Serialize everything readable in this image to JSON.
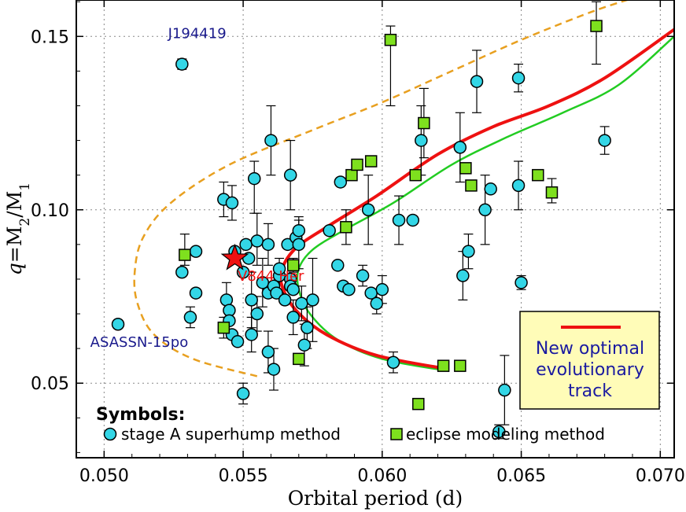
{
  "chart_data": {
    "type": "scatter",
    "xlabel": "Orbital period (d)",
    "ylabel_parts": [
      "q",
      "=M",
      "2",
      "/M",
      "1"
    ],
    "xlim": [
      0.049,
      0.0705
    ],
    "ylim": [
      0.0285,
      0.1605
    ],
    "xticks": [
      0.05,
      0.055,
      0.06,
      0.065,
      0.07
    ],
    "xtick_labels": [
      "0.050",
      "0.055",
      "0.060",
      "0.065",
      "0.070"
    ],
    "yticks": [
      0.05,
      0.1,
      0.15
    ],
    "ytick_labels": [
      "0.05",
      "0.10",
      "0.15"
    ],
    "grid": true,
    "series": [
      {
        "name": "stage A superhump method",
        "marker": "circle",
        "color": "#33d6e6",
        "points": [
          {
            "x": 0.0505,
            "y": 0.067
          },
          {
            "x": 0.0528,
            "y": 0.142,
            "ylo": 0.1405,
            "yhi": 0.1435
          },
          {
            "x": 0.0528,
            "y": 0.082
          },
          {
            "x": 0.0531,
            "y": 0.069,
            "ylo": 0.066,
            "yhi": 0.072
          },
          {
            "x": 0.0533,
            "y": 0.076
          },
          {
            "x": 0.0533,
            "y": 0.088
          },
          {
            "x": 0.0543,
            "y": 0.103,
            "ylo": 0.098,
            "yhi": 0.108
          },
          {
            "x": 0.0544,
            "y": 0.074,
            "ylo": 0.069,
            "yhi": 0.079
          },
          {
            "x": 0.0545,
            "y": 0.071
          },
          {
            "x": 0.0545,
            "y": 0.068
          },
          {
            "x": 0.0546,
            "y": 0.064
          },
          {
            "x": 0.0546,
            "y": 0.102,
            "ylo": 0.097,
            "yhi": 0.107
          },
          {
            "x": 0.0547,
            "y": 0.088
          },
          {
            "x": 0.0548,
            "y": 0.062
          },
          {
            "x": 0.055,
            "y": 0.047,
            "ylo": 0.044,
            "yhi": 0.05
          },
          {
            "x": 0.055,
            "y": 0.082
          },
          {
            "x": 0.0551,
            "y": 0.09
          },
          {
            "x": 0.0552,
            "y": 0.086
          },
          {
            "x": 0.0553,
            "y": 0.074,
            "ylo": 0.066,
            "yhi": 0.082
          },
          {
            "x": 0.0553,
            "y": 0.064,
            "ylo": 0.059,
            "yhi": 0.069
          },
          {
            "x": 0.0554,
            "y": 0.109,
            "ylo": 0.099,
            "yhi": 0.114
          },
          {
            "x": 0.0555,
            "y": 0.07,
            "ylo": 0.065,
            "yhi": 0.075
          },
          {
            "x": 0.0555,
            "y": 0.091,
            "ylo": 0.084,
            "yhi": 0.099
          },
          {
            "x": 0.0557,
            "y": 0.079,
            "ylo": 0.072,
            "yhi": 0.086
          },
          {
            "x": 0.0559,
            "y": 0.09,
            "ylo": 0.084,
            "yhi": 0.096
          },
          {
            "x": 0.0559,
            "y": 0.076
          },
          {
            "x": 0.0559,
            "y": 0.059,
            "ylo": 0.053,
            "yhi": 0.065
          },
          {
            "x": 0.056,
            "y": 0.12,
            "ylo": 0.11,
            "yhi": 0.13
          },
          {
            "x": 0.0561,
            "y": 0.054,
            "ylo": 0.048,
            "yhi": 0.06
          },
          {
            "x": 0.0561,
            "y": 0.078
          },
          {
            "x": 0.0562,
            "y": 0.076
          },
          {
            "x": 0.0563,
            "y": 0.081,
            "ylo": 0.076,
            "yhi": 0.086
          },
          {
            "x": 0.0563,
            "y": 0.083
          },
          {
            "x": 0.0565,
            "y": 0.074
          },
          {
            "x": 0.0566,
            "y": 0.09
          },
          {
            "x": 0.0567,
            "y": 0.08
          },
          {
            "x": 0.0567,
            "y": 0.078
          },
          {
            "x": 0.0567,
            "y": 0.11,
            "ylo": 0.1,
            "yhi": 0.12
          },
          {
            "x": 0.0568,
            "y": 0.069,
            "ylo": 0.064,
            "yhi": 0.074
          },
          {
            "x": 0.0568,
            "y": 0.077
          },
          {
            "x": 0.0569,
            "y": 0.092
          },
          {
            "x": 0.057,
            "y": 0.09,
            "ylo": 0.083,
            "yhi": 0.097
          },
          {
            "x": 0.057,
            "y": 0.094,
            "ylo": 0.09,
            "yhi": 0.098
          },
          {
            "x": 0.0571,
            "y": 0.073,
            "ylo": 0.068,
            "yhi": 0.078
          },
          {
            "x": 0.0572,
            "y": 0.061,
            "ylo": 0.055,
            "yhi": 0.067
          },
          {
            "x": 0.0573,
            "y": 0.066,
            "ylo": 0.06,
            "yhi": 0.072
          },
          {
            "x": 0.0575,
            "y": 0.074,
            "ylo": 0.062,
            "yhi": 0.086
          },
          {
            "x": 0.0581,
            "y": 0.094
          },
          {
            "x": 0.0584,
            "y": 0.084
          },
          {
            "x": 0.0585,
            "y": 0.108
          },
          {
            "x": 0.0586,
            "y": 0.078
          },
          {
            "x": 0.0588,
            "y": 0.077
          },
          {
            "x": 0.0593,
            "y": 0.081,
            "ylo": 0.078,
            "yhi": 0.084
          },
          {
            "x": 0.0595,
            "y": 0.1,
            "ylo": 0.09,
            "yhi": 0.11
          },
          {
            "x": 0.0596,
            "y": 0.076
          },
          {
            "x": 0.0598,
            "y": 0.073,
            "ylo": 0.07,
            "yhi": 0.076
          },
          {
            "x": 0.06,
            "y": 0.077,
            "ylo": 0.073,
            "yhi": 0.081
          },
          {
            "x": 0.0604,
            "y": 0.056,
            "ylo": 0.053,
            "yhi": 0.059
          },
          {
            "x": 0.0606,
            "y": 0.097,
            "ylo": 0.09,
            "yhi": 0.104
          },
          {
            "x": 0.0611,
            "y": 0.097
          },
          {
            "x": 0.0614,
            "y": 0.12,
            "ylo": 0.11,
            "yhi": 0.13
          },
          {
            "x": 0.0628,
            "y": 0.118,
            "ylo": 0.108,
            "yhi": 0.128
          },
          {
            "x": 0.0629,
            "y": 0.081,
            "ylo": 0.074,
            "yhi": 0.088
          },
          {
            "x": 0.0631,
            "y": 0.088,
            "ylo": 0.083,
            "yhi": 0.093
          },
          {
            "x": 0.0634,
            "y": 0.137,
            "ylo": 0.128,
            "yhi": 0.146
          },
          {
            "x": 0.0637,
            "y": 0.1,
            "ylo": 0.09,
            "yhi": 0.11
          },
          {
            "x": 0.0639,
            "y": 0.106
          },
          {
            "x": 0.0642,
            "y": 0.036,
            "ylo": 0.034,
            "yhi": 0.038
          },
          {
            "x": 0.0644,
            "y": 0.048,
            "ylo": 0.038,
            "yhi": 0.058
          },
          {
            "x": 0.0649,
            "y": 0.138,
            "ylo": 0.134,
            "yhi": 0.142
          },
          {
            "x": 0.0649,
            "y": 0.107,
            "ylo": 0.1,
            "yhi": 0.114
          },
          {
            "x": 0.065,
            "y": 0.079,
            "ylo": 0.077,
            "yhi": 0.081
          },
          {
            "x": 0.068,
            "y": 0.12,
            "ylo": 0.116,
            "yhi": 0.124
          }
        ]
      },
      {
        "name": "eclipse modeling method",
        "marker": "square",
        "color": "#7ee01e",
        "points": [
          {
            "x": 0.0529,
            "y": 0.087,
            "ylo": 0.084,
            "yhi": 0.093
          },
          {
            "x": 0.0543,
            "y": 0.066,
            "ylo": 0.063,
            "yhi": 0.069
          },
          {
            "x": 0.0568,
            "y": 0.084,
            "ylo": 0.082,
            "yhi": 0.086
          },
          {
            "x": 0.057,
            "y": 0.057
          },
          {
            "x": 0.0587,
            "y": 0.095,
            "ylo": 0.09,
            "yhi": 0.1
          },
          {
            "x": 0.0589,
            "y": 0.11
          },
          {
            "x": 0.0591,
            "y": 0.113
          },
          {
            "x": 0.0596,
            "y": 0.114
          },
          {
            "x": 0.0603,
            "y": 0.149,
            "ylo": 0.13,
            "yhi": 0.153
          },
          {
            "x": 0.0612,
            "y": 0.11
          },
          {
            "x": 0.0613,
            "y": 0.044
          },
          {
            "x": 0.0615,
            "y": 0.125,
            "ylo": 0.115,
            "yhi": 0.135
          },
          {
            "x": 0.0622,
            "y": 0.055
          },
          {
            "x": 0.0628,
            "y": 0.055
          },
          {
            "x": 0.063,
            "y": 0.112
          },
          {
            "x": 0.0632,
            "y": 0.107
          },
          {
            "x": 0.0656,
            "y": 0.11
          },
          {
            "x": 0.0661,
            "y": 0.105,
            "ylo": 0.102,
            "yhi": 0.109
          },
          {
            "x": 0.0677,
            "y": 0.153,
            "ylo": 0.142,
            "yhi": 0.16
          }
        ]
      }
    ],
    "highlight": {
      "name": "V844 Her",
      "x": 0.0547,
      "y": 0.086,
      "marker": "star",
      "color": "#ee1111"
    },
    "curves": [
      {
        "name": "New optimal evolutionary track",
        "color": "#ee1111",
        "width": 4,
        "points": [
          [
            0.0624,
            0.054
          ],
          [
            0.0598,
            0.058
          ],
          [
            0.058,
            0.064
          ],
          [
            0.0569,
            0.071
          ],
          [
            0.0564,
            0.078
          ],
          [
            0.0564,
            0.083
          ],
          [
            0.0569,
            0.089
          ],
          [
            0.058,
            0.095
          ],
          [
            0.0598,
            0.104
          ],
          [
            0.062,
            0.116
          ],
          [
            0.064,
            0.124
          ],
          [
            0.066,
            0.13
          ],
          [
            0.068,
            0.138
          ],
          [
            0.0705,
            0.152
          ]
        ]
      },
      {
        "color": "#22cc22",
        "width": 2.5,
        "points": [
          [
            0.0624,
            0.0535
          ],
          [
            0.06,
            0.057
          ],
          [
            0.0584,
            0.0625
          ],
          [
            0.0574,
            0.07
          ],
          [
            0.057,
            0.077
          ],
          [
            0.057,
            0.083
          ],
          [
            0.0575,
            0.0885
          ],
          [
            0.0586,
            0.094
          ],
          [
            0.0604,
            0.102
          ],
          [
            0.0625,
            0.113
          ],
          [
            0.0645,
            0.121
          ],
          [
            0.0665,
            0.128
          ],
          [
            0.0685,
            0.136
          ],
          [
            0.0705,
            0.15
          ]
        ]
      },
      {
        "color": "#e8a020",
        "dashed": true,
        "width": 2.5,
        "points": [
          [
            0.0555,
            0.052
          ],
          [
            0.0532,
            0.057
          ],
          [
            0.0518,
            0.064
          ],
          [
            0.0512,
            0.073
          ],
          [
            0.0511,
            0.082
          ],
          [
            0.0514,
            0.092
          ],
          [
            0.0524,
            0.102
          ],
          [
            0.0545,
            0.113
          ],
          [
            0.0575,
            0.123
          ],
          [
            0.06,
            0.131
          ],
          [
            0.0625,
            0.14
          ],
          [
            0.065,
            0.149
          ],
          [
            0.0675,
            0.157
          ],
          [
            0.069,
            0.161
          ]
        ]
      }
    ],
    "annotations": [
      {
        "text": "J194419",
        "x": 0.0523,
        "y": 0.1495,
        "color": "#1a1a8c"
      },
      {
        "text": "ASASSN-15po",
        "x": 0.0495,
        "y": 0.0605,
        "color": "#1a1a8c"
      },
      {
        "text": "V844 Her",
        "x": 0.0548,
        "y": 0.0795,
        "color": "#ee1111"
      }
    ],
    "legend": {
      "title": "Symbols:",
      "position": "bottom-left",
      "entries": [
        "stage A superhump method",
        "eclipse modeling method"
      ]
    },
    "track_box": {
      "lines": [
        "New optimal",
        "evolutionary",
        "track"
      ],
      "text_color": "#1a1aa0",
      "background": "#fffcb8",
      "swatch_color": "#ee1111",
      "position": "bottom-right"
    }
  }
}
